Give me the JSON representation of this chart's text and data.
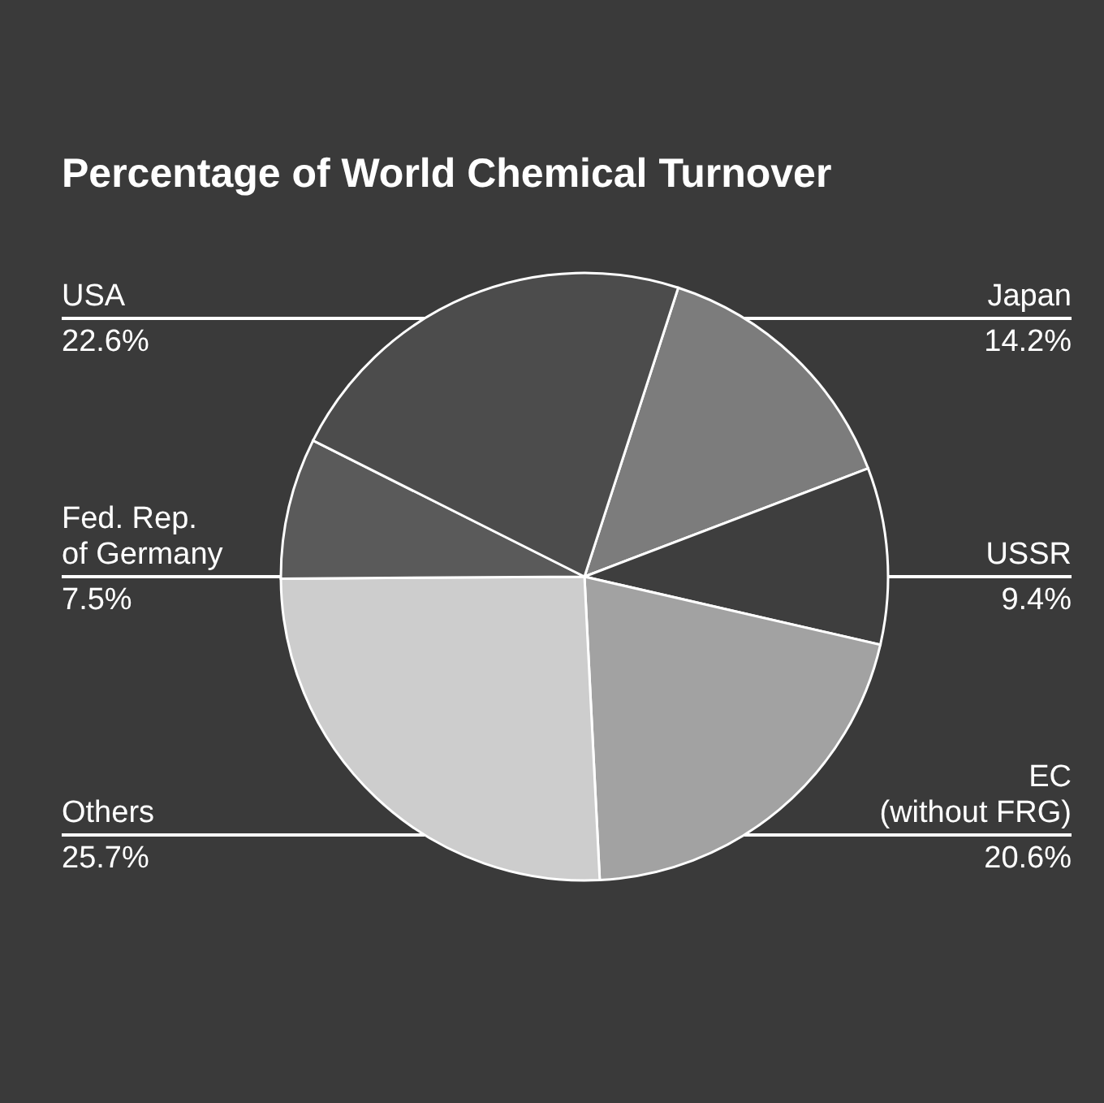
{
  "chart_data": {
    "type": "pie",
    "title": "Percentage of World Chemical Turnover",
    "categories": [
      "Japan",
      "USSR",
      "EC\n(without FRG)",
      "Others",
      "Fed. Rep.\nof Germany",
      "USA"
    ],
    "values": [
      14.2,
      9.4,
      20.6,
      25.7,
      7.5,
      22.6
    ],
    "value_labels": [
      "14.2%",
      "9.4%",
      "20.6%",
      "25.7%",
      "7.5%",
      "22.6%"
    ],
    "colors": [
      "#7c7c7c",
      "#3e3e3e",
      "#a2a2a2",
      "#cdcdcd",
      "#5a5a5a",
      "#4c4c4c"
    ]
  }
}
